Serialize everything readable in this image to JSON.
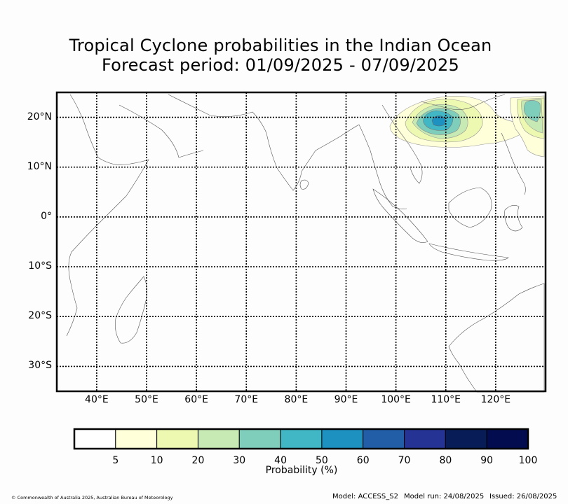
{
  "title": {
    "line1": "Tropical Cyclone probabilities in the Indian Ocean",
    "line2": "Forecast period: 01/09/2025 - 07/09/2025"
  },
  "map": {
    "lon_range": [
      32,
      130
    ],
    "lat_range": [
      -35,
      25
    ],
    "lat_ticks": [
      {
        "value": 20,
        "label": "20°N"
      },
      {
        "value": 10,
        "label": "10°N"
      },
      {
        "value": 0,
        "label": "0°"
      },
      {
        "value": -10,
        "label": "10°S"
      },
      {
        "value": -20,
        "label": "20°S"
      },
      {
        "value": -30,
        "label": "30°S"
      }
    ],
    "lon_ticks": [
      {
        "value": 40,
        "label": "40°E"
      },
      {
        "value": 50,
        "label": "50°E"
      },
      {
        "value": 60,
        "label": "60°E"
      },
      {
        "value": 70,
        "label": "70°E"
      },
      {
        "value": 80,
        "label": "80°E"
      },
      {
        "value": 90,
        "label": "90°E"
      },
      {
        "value": 100,
        "label": "100°E"
      },
      {
        "value": 110,
        "label": "110°E"
      },
      {
        "value": 120,
        "label": "120°E"
      }
    ],
    "grid": true,
    "probability_areas": [
      {
        "name": "south-china-sea",
        "center_lon": 108.5,
        "center_lat": 19,
        "peak_percent": 50
      },
      {
        "name": "philippine-sea",
        "center_lon": 126.5,
        "center_lat": 21,
        "peak_percent": 40
      }
    ]
  },
  "colorbar": {
    "title": "Probability (%)",
    "levels": [
      "5",
      "10",
      "20",
      "30",
      "40",
      "50",
      "60",
      "70",
      "80",
      "90",
      "100"
    ],
    "colors": [
      "#ffffff",
      "#ffffd9",
      "#edf8b1",
      "#c7e9b4",
      "#7fcdbb",
      "#41b6c4",
      "#1d91c0",
      "#225ea8",
      "#253494",
      "#081d58",
      "#030c4f"
    ]
  },
  "footer": {
    "copyright": "© Commonwealth of Australia 2025, Australian Bureau of Meteorology",
    "model": "Model: ACCESS_S2",
    "model_run": "Model run: 24/08/2025",
    "issued": "Issued: 26/08/2025"
  }
}
